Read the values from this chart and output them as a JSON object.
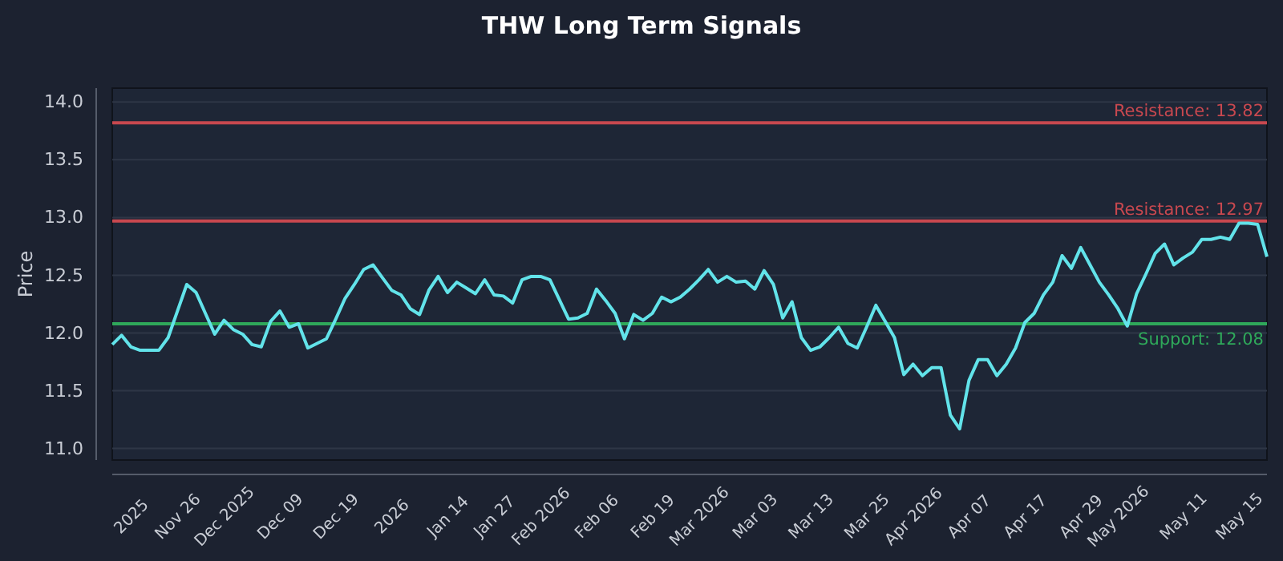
{
  "chart_data": {
    "type": "line",
    "title": "THW Long Term Signals",
    "ylabel": "Price",
    "categories": [
      null,
      null,
      "2025",
      null,
      null,
      null,
      null,
      "Nov 26",
      null,
      null,
      null,
      null,
      "Dec 2025",
      null,
      null,
      null,
      null,
      null,
      "Dec 09",
      null,
      null,
      null,
      null,
      null,
      "Dec 19",
      null,
      null,
      null,
      null,
      null,
      "2026",
      null,
      null,
      null,
      null,
      null,
      "Jan 14",
      null,
      null,
      null,
      null,
      "Jan 27",
      null,
      null,
      null,
      null,
      "Feb 2026",
      null,
      null,
      null,
      null,
      null,
      "Feb 06",
      null,
      null,
      null,
      null,
      null,
      "Feb 19",
      null,
      null,
      null,
      null,
      "Mar 2026",
      null,
      null,
      null,
      null,
      null,
      "Mar 03",
      null,
      null,
      null,
      null,
      null,
      "Mar 13",
      null,
      null,
      null,
      null,
      null,
      "Mar 25",
      null,
      null,
      null,
      null,
      "Apr 2026",
      null,
      null,
      null,
      null,
      null,
      "Apr 07",
      null,
      null,
      null,
      null,
      null,
      "Apr 17",
      null,
      null,
      null,
      null,
      null,
      "Apr 29",
      null,
      null,
      null,
      "May 2026",
      null,
      null,
      null,
      null,
      null,
      null,
      "May 11",
      null,
      null,
      null,
      null,
      null,
      "May 15",
      null,
      null,
      null
    ],
    "series": [
      {
        "color": "#62e3ea",
        "values": [
          11.9,
          11.98,
          11.88,
          11.85,
          11.85,
          11.85,
          11.96,
          12.19,
          12.42,
          12.35,
          12.17,
          11.99,
          12.11,
          12.03,
          11.99,
          11.9,
          11.88,
          12.1,
          12.19,
          12.05,
          12.08,
          11.87,
          11.91,
          11.95,
          12.12,
          12.3,
          12.42,
          12.55,
          12.59,
          12.48,
          12.37,
          12.33,
          12.21,
          12.16,
          12.37,
          12.49,
          12.35,
          12.44,
          12.39,
          12.34,
          12.46,
          12.33,
          12.32,
          12.26,
          12.46,
          12.49,
          12.49,
          12.46,
          12.29,
          12.12,
          12.13,
          12.17,
          12.38,
          12.28,
          12.17,
          11.95,
          12.16,
          12.11,
          12.17,
          12.31,
          12.27,
          12.31,
          12.38,
          12.46,
          12.55,
          12.44,
          12.49,
          12.44,
          12.45,
          12.38,
          12.54,
          12.42,
          12.13,
          12.27,
          11.96,
          11.85,
          11.88,
          11.96,
          12.05,
          11.91,
          11.87,
          12.05,
          12.24,
          12.1,
          11.96,
          11.64,
          11.73,
          11.63,
          11.7,
          11.7,
          11.29,
          11.17,
          11.59,
          11.77,
          11.77,
          11.63,
          11.73,
          11.87,
          12.09,
          12.17,
          12.33,
          12.44,
          12.67,
          12.56,
          12.74,
          12.59,
          12.44,
          12.33,
          12.21,
          12.06,
          12.34,
          12.51,
          12.69,
          12.77,
          12.59,
          12.65,
          12.7,
          12.81,
          12.81,
          12.83,
          12.81,
          12.95,
          12.95,
          12.94,
          12.66
        ]
      }
    ],
    "ylim": [
      10.9,
      14.12
    ],
    "yticks": [
      {
        "value": 11,
        "label": "11.0"
      },
      {
        "value": 11.5,
        "label": "11.5"
      },
      {
        "value": 12,
        "label": "12.0"
      },
      {
        "value": 12.5,
        "label": "12.5"
      },
      {
        "value": 13,
        "label": "13.0"
      },
      {
        "value": 13.5,
        "label": "13.5"
      },
      {
        "value": 14,
        "label": "14.0"
      }
    ],
    "grid": "y",
    "marker": "none",
    "line_style": "solid",
    "ref_lines": [
      {
        "axis": "y",
        "value": 13.82,
        "label": "Resistance: 13.82",
        "color": "#c8484f"
      },
      {
        "axis": "y",
        "value": 12.97,
        "label": "Resistance: 12.97",
        "color": "#c8484f"
      },
      {
        "axis": "y",
        "value": 12.08,
        "label": "Support: 12.08",
        "color": "#2fa85a"
      }
    ]
  }
}
